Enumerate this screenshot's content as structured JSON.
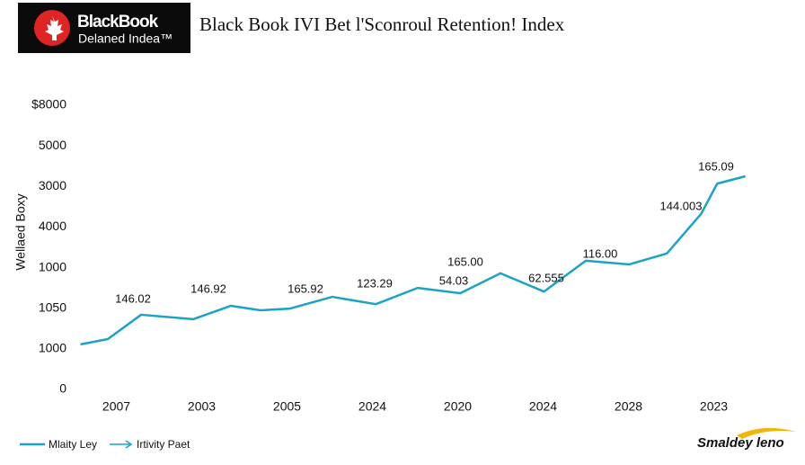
{
  "header": {
    "brand": "BlackBook",
    "brand_sub": "Delaned Indea™"
  },
  "chart_data": {
    "type": "line",
    "title": "Black Book IVI Bet l'Sconroul Retention! Index",
    "y_label": "Wellaed Boxy",
    "y_axis_labels": [
      "0",
      "1000",
      "1050",
      "1000",
      "4000",
      "3000",
      "5000",
      "$8000"
    ],
    "categories": [
      "2007",
      "2003",
      "2005",
      "2024",
      "2020",
      "2024",
      "2028",
      "2023"
    ],
    "xlim": [
      -0.5,
      7.5
    ],
    "ylim": [
      0,
      7
    ],
    "x": [
      -0.42,
      -0.1,
      0.29,
      0.9,
      1.34,
      1.69,
      2.03,
      2.53,
      3.04,
      3.53,
      4.03,
      4.5,
      5.01,
      5.5,
      6.01,
      6.45,
      6.85,
      7.04,
      7.37
    ],
    "series": [
      {
        "name": "Mlaity Ley",
        "color": "#1ba3c6",
        "values": [
          1.11,
          1.24,
          1.84,
          1.73,
          2.06,
          1.95,
          1.99,
          2.28,
          2.1,
          2.5,
          2.37,
          2.86,
          2.41,
          3.17,
          3.08,
          3.35,
          4.32,
          5.07,
          5.25
        ]
      }
    ],
    "legend_extra": "Irtivity Paet",
    "annotations": [
      "146.02",
      "146.92",
      "165.92",
      "123.29",
      "165.00",
      "54.03",
      "62.555",
      "116.00",
      "144.003",
      "165.09"
    ]
  },
  "footer": {
    "logo": "Smaldey leno"
  }
}
